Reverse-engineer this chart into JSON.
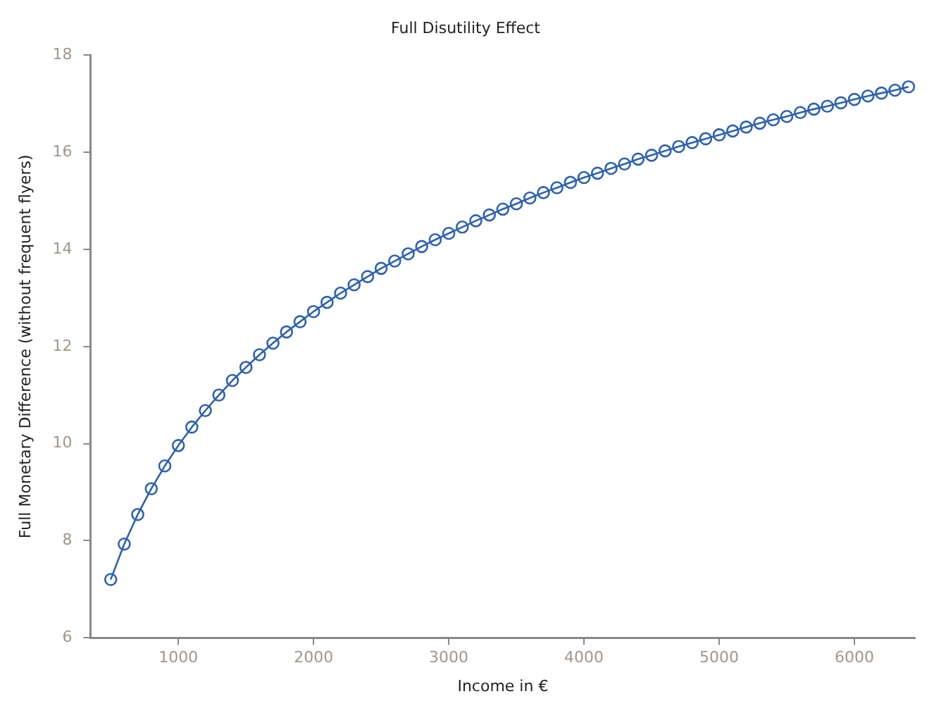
{
  "chart_data": {
    "type": "line",
    "title": "Full Disutility Effect",
    "xlabel": "Income in €",
    "ylabel": "Full Monetary Difference (without frequent flyers)",
    "x": [
      500,
      600,
      700,
      800,
      900,
      1000,
      1100,
      1200,
      1300,
      1400,
      1500,
      1600,
      1700,
      1800,
      1900,
      2000,
      2100,
      2200,
      2300,
      2400,
      2500,
      2600,
      2700,
      2800,
      2900,
      3000,
      3100,
      3200,
      3300,
      3400,
      3500,
      3600,
      3700,
      3800,
      3900,
      4000,
      4100,
      4200,
      4300,
      4400,
      4500,
      4600,
      4700,
      4800,
      4900,
      5000,
      5100,
      5200,
      5300,
      5400,
      5500,
      5600,
      5700,
      5800,
      5900,
      6000,
      6100,
      6200,
      6300,
      6400
    ],
    "series": [
      {
        "color": "#2e62b0",
        "values": [
          7.2,
          7.93,
          8.54,
          9.07,
          9.54,
          9.96,
          10.34,
          10.68,
          11.0,
          11.3,
          11.57,
          11.83,
          12.07,
          12.3,
          12.51,
          12.72,
          12.91,
          13.1,
          13.27,
          13.44,
          13.61,
          13.76,
          13.91,
          14.06,
          14.2,
          14.33,
          14.46,
          14.59,
          14.71,
          14.83,
          14.94,
          15.06,
          15.17,
          15.27,
          15.38,
          15.48,
          15.57,
          15.67,
          15.76,
          15.86,
          15.94,
          16.03,
          16.12,
          16.2,
          16.28,
          16.36,
          16.44,
          16.52,
          16.6,
          16.67,
          16.74,
          16.82,
          16.89,
          16.95,
          17.02,
          17.09,
          17.16,
          17.22,
          17.28,
          17.35
        ]
      }
    ],
    "xlim": [
      350,
      6450
    ],
    "xticks": [
      1000,
      2000,
      3000,
      4000,
      5000,
      6000
    ],
    "ylim": [
      6,
      18
    ],
    "yticks": [
      6,
      8,
      10,
      12,
      14,
      16,
      18
    ],
    "grid": false,
    "legend": false,
    "marker": "circle",
    "line_style": "solid"
  }
}
